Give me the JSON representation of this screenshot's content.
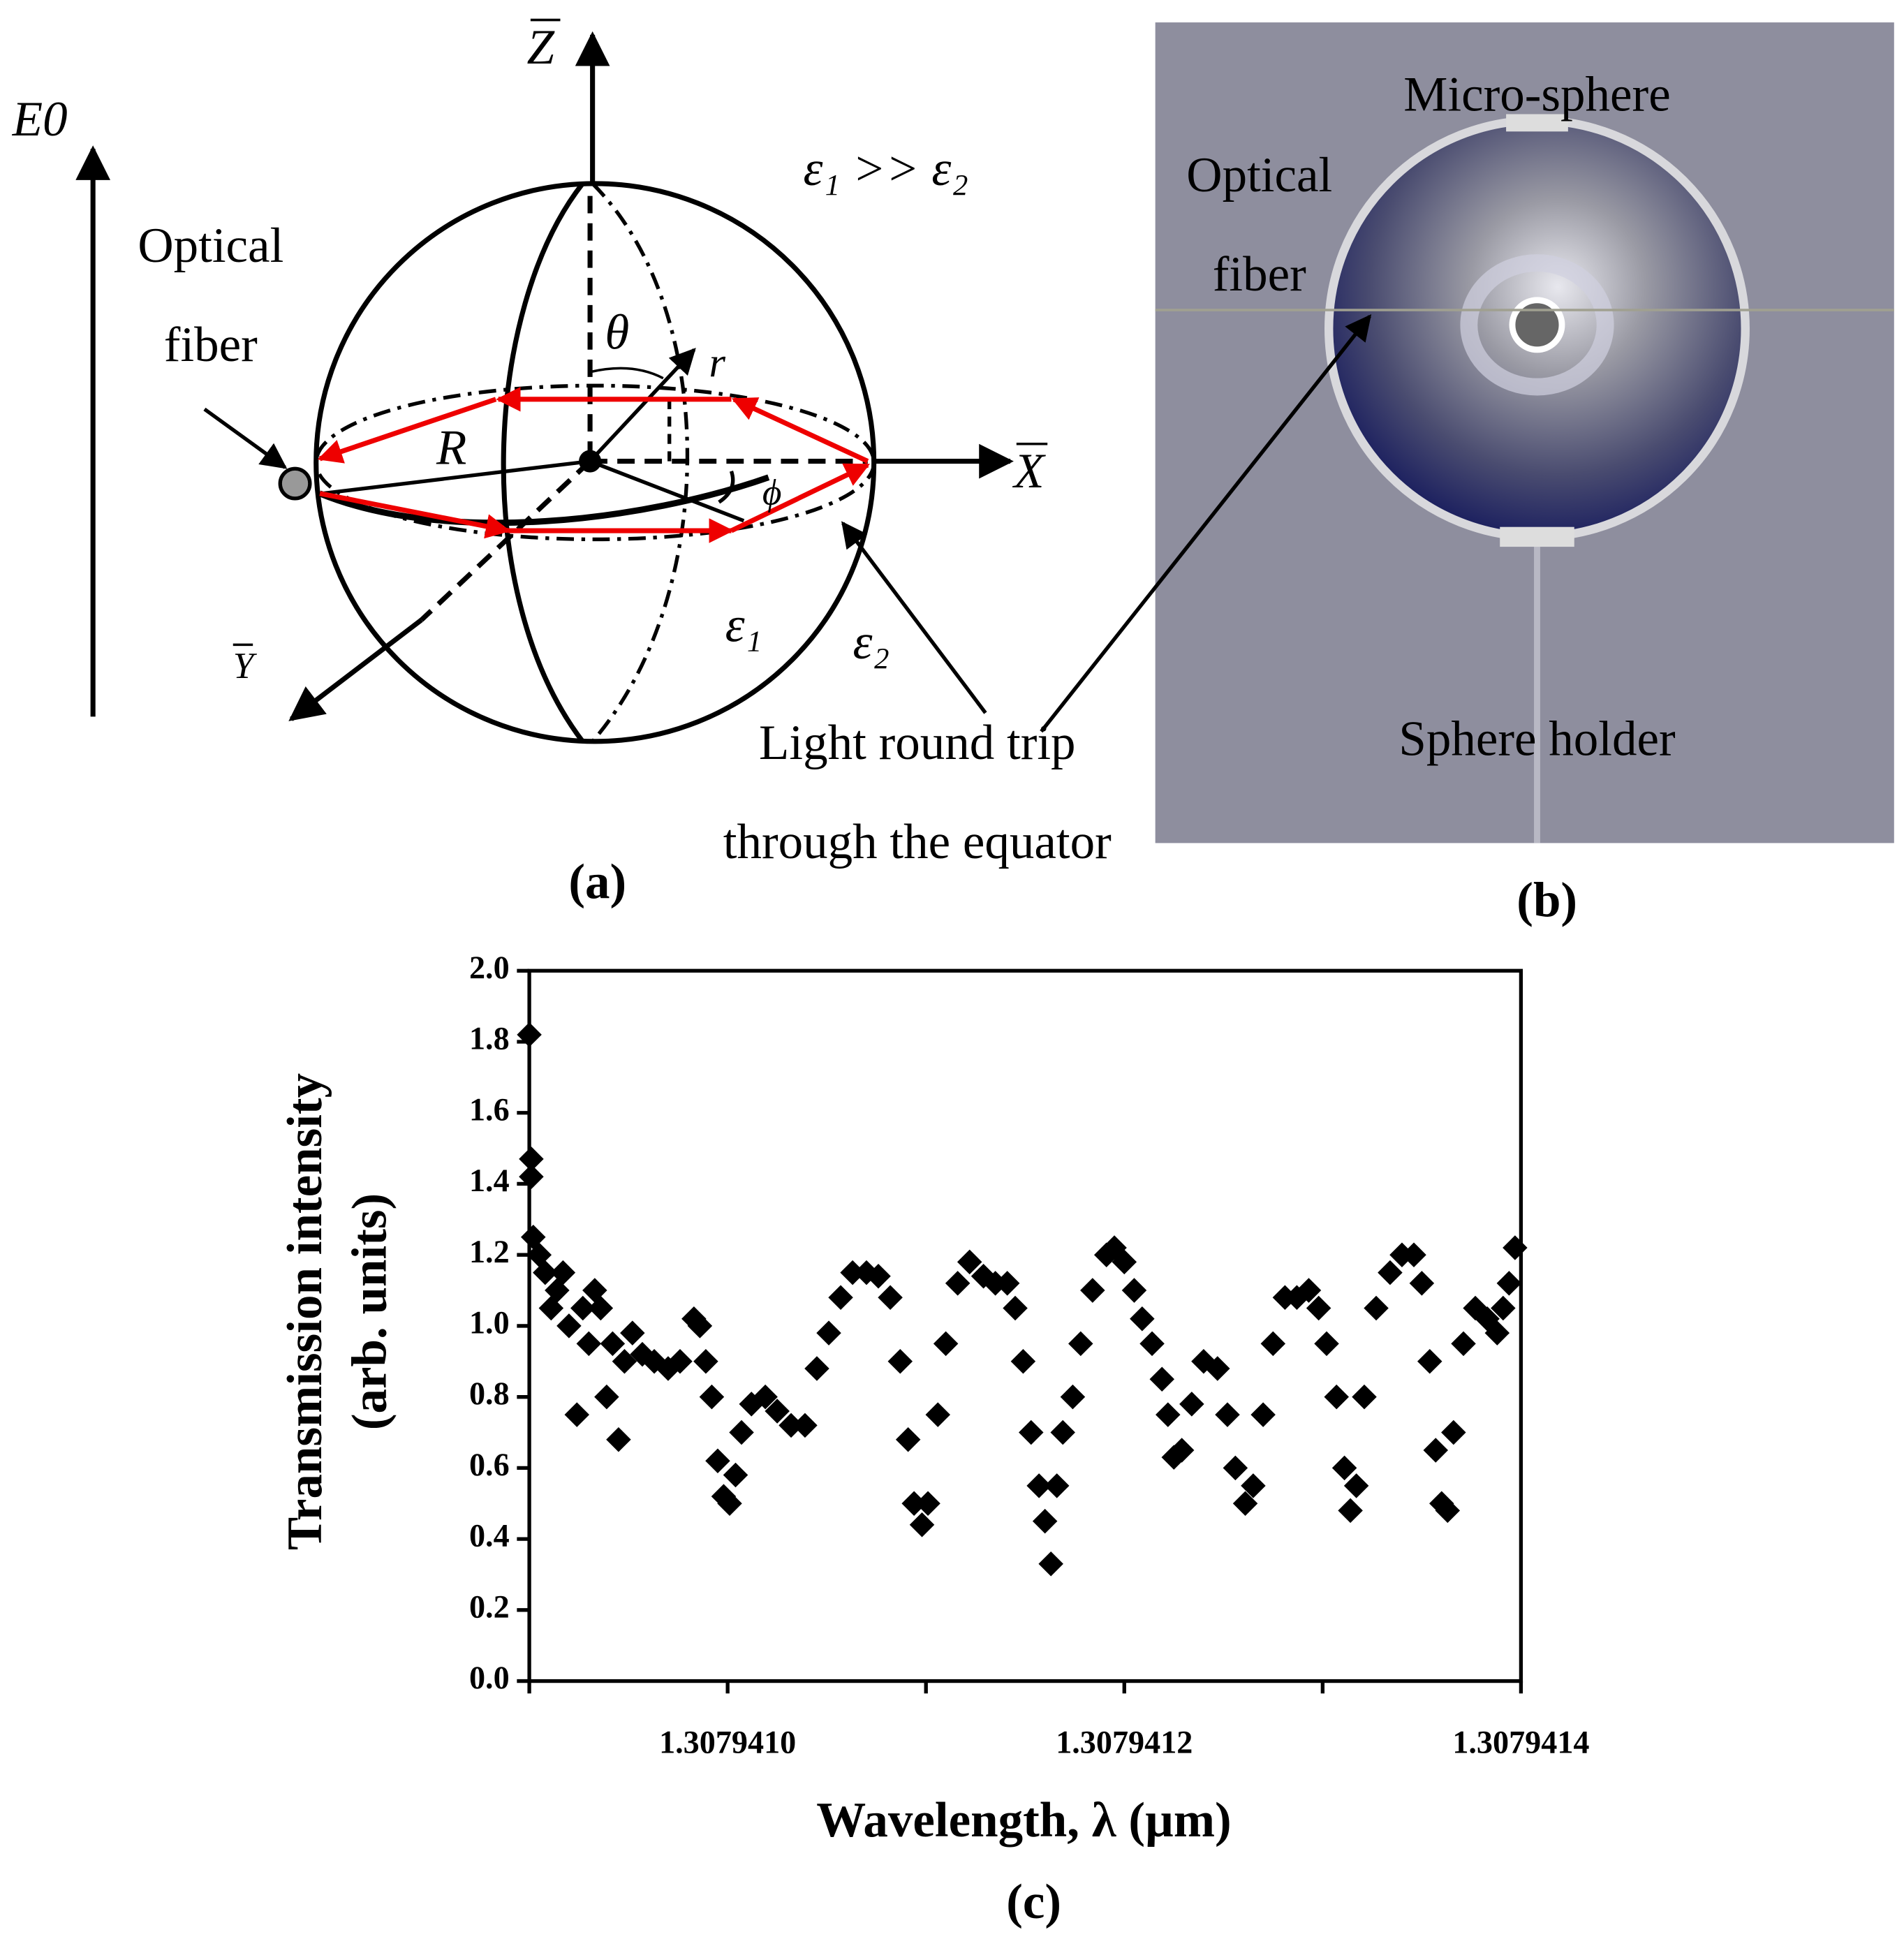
{
  "panel_a": {
    "e0_label": "E0",
    "z_label": "Z",
    "x_label": "X",
    "y_label": "Y",
    "fiber_label": [
      "Optical",
      "fiber"
    ],
    "permittivity_relation": "ε₁ >> ε₂",
    "theta": "θ",
    "r": "r",
    "radius": "R",
    "phi": "ϕ",
    "inner_permittivity": "ε₁",
    "outer_permittivity": "ε₂",
    "light_path_label": [
      "Light round trip",
      "through the equator"
    ],
    "caption": "(a)"
  },
  "panel_b": {
    "sphere_label": "Micro-sphere",
    "fiber_label": [
      "Optical",
      "fiber"
    ],
    "holder_label": "Sphere holder",
    "caption": "(b)"
  },
  "chart_data": {
    "type": "scatter",
    "y_label": [
      "Transmission intensity",
      "(arb. units)"
    ],
    "x_label": "Wavelength, λ (µm)",
    "caption": "(c)",
    "color": "#000000",
    "marker": "diamond",
    "xlim": [
      1.3079409,
      1.3079414
    ],
    "xticks": [
      {
        "value": 1.307941,
        "label": "1.3079410"
      },
      1.3079412,
      1.3079414
    ],
    "xminorticks": [
      1.3079409,
      1.3079411,
      1.3079413
    ],
    "ylim": [
      0,
      2
    ],
    "yticks": [
      {
        "value": 0,
        "label": "0.0"
      },
      0.2,
      0.4,
      0.6,
      0.8,
      {
        "value": 1,
        "label": "1.0"
      },
      1.2,
      1.4,
      1.6,
      1.8,
      {
        "value": 2,
        "label": "2.0"
      }
    ],
    "x": [
      1.3079409,
      1.307940901,
      1.307940901,
      1.307940902,
      1.307940905,
      1.307940908,
      1.307940911,
      1.307940914,
      1.307940917,
      1.30794092,
      1.307940924,
      1.307940927,
      1.30794093,
      1.307940933,
      1.307940936,
      1.307940939,
      1.307940942,
      1.307940945,
      1.307940948,
      1.307940952,
      1.307940957,
      1.307940963,
      1.30794097,
      1.307940976,
      1.307940983,
      1.307940986,
      1.307940989,
      1.307940992,
      1.307940995,
      1.307940998,
      1.307941001,
      1.307941004,
      1.307941007,
      1.307941012,
      1.307941019,
      1.307941025,
      1.307941032,
      1.307941039,
      1.307941045,
      1.307941051,
      1.307941057,
      1.307941063,
      1.30794107,
      1.307941076,
      1.307941082,
      1.307941087,
      1.307941091,
      1.307941094,
      1.307941098,
      1.307941101,
      1.307941106,
      1.30794111,
      1.307941116,
      1.307941122,
      1.307941129,
      1.307941135,
      1.307941141,
      1.307941145,
      1.307941149,
      1.307941153,
      1.307941157,
      1.30794116,
      1.307941163,
      1.307941166,
      1.307941169,
      1.307941174,
      1.307941178,
      1.307941184,
      1.307941191,
      1.307941195,
      1.3079412,
      1.307941205,
      1.307941209,
      1.307941214,
      1.307941219,
      1.307941222,
      1.307941225,
      1.307941229,
      1.307941234,
      1.30794124,
      1.307941247,
      1.307941252,
      1.307941256,
      1.307941261,
      1.307941265,
      1.30794127,
      1.307941275,
      1.307941281,
      1.307941287,
      1.307941293,
      1.307941298,
      1.307941302,
      1.307941307,
      1.307941311,
      1.307941314,
      1.307941317,
      1.307941321,
      1.307941327,
      1.307941334,
      1.30794134,
      1.307941346,
      1.30794135,
      1.307941354,
      1.307941357,
      1.30794136,
      1.307941363,
      1.307941366,
      1.307941371,
      1.307941377,
      1.307941383,
      1.307941388,
      1.307941391,
      1.307941394,
      1.307941397
    ],
    "values": [
      1.82,
      1.47,
      1.42,
      1.25,
      1.2,
      1.15,
      1.05,
      1.1,
      1.15,
      1.0,
      0.75,
      1.05,
      0.95,
      1.1,
      1.05,
      0.8,
      0.95,
      0.68,
      0.9,
      0.98,
      0.92,
      0.9,
      0.88,
      0.9,
      1.02,
      1.0,
      0.9,
      0.8,
      0.62,
      0.52,
      0.5,
      0.58,
      0.7,
      0.78,
      0.8,
      0.76,
      0.72,
      0.72,
      0.88,
      0.98,
      1.08,
      1.15,
      1.15,
      1.14,
      1.08,
      0.9,
      0.68,
      0.5,
      0.44,
      0.5,
      0.75,
      0.95,
      1.12,
      1.18,
      1.14,
      1.12,
      1.12,
      1.05,
      0.9,
      0.7,
      0.55,
      0.45,
      0.33,
      0.55,
      0.7,
      0.8,
      0.95,
      1.1,
      1.2,
      1.22,
      1.18,
      1.1,
      1.02,
      0.95,
      0.85,
      0.75,
      0.63,
      0.65,
      0.78,
      0.9,
      0.88,
      0.75,
      0.6,
      0.5,
      0.55,
      0.75,
      0.95,
      1.08,
      1.08,
      1.1,
      1.05,
      0.95,
      0.8,
      0.6,
      0.48,
      0.55,
      0.8,
      1.05,
      1.15,
      1.2,
      1.2,
      1.12,
      0.9,
      0.65,
      0.5,
      0.48,
      0.7,
      0.95,
      1.05,
      1.02,
      0.98,
      1.05,
      1.12,
      1.22
    ]
  }
}
